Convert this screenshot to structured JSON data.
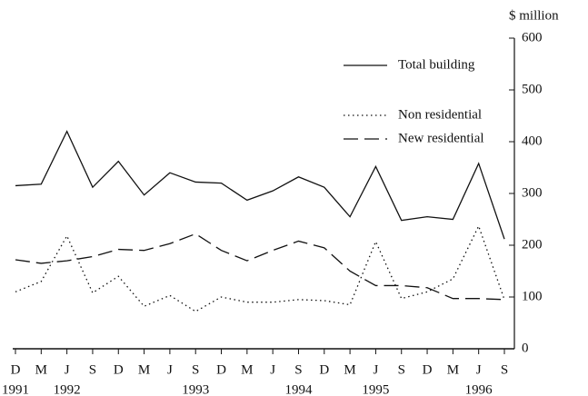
{
  "chart_data": {
    "type": "line",
    "y_axis_label": "$ million",
    "categories": [
      "D",
      "M",
      "J",
      "S",
      "D",
      "M",
      "J",
      "S",
      "D",
      "M",
      "J",
      "S",
      "D",
      "M",
      "J",
      "S",
      "D",
      "M",
      "J",
      "S"
    ],
    "year_labels": [
      "1991",
      null,
      "1992",
      null,
      null,
      null,
      null,
      "1993",
      null,
      null,
      null,
      "1994",
      null,
      null,
      "1995",
      null,
      null,
      null,
      "1996",
      null
    ],
    "ylim": [
      0,
      600
    ],
    "yticks": [
      0,
      100,
      200,
      300,
      400,
      500,
      600
    ],
    "legend": "upper right",
    "series": [
      {
        "name": "Total building",
        "color": "#111111",
        "dash": "solid",
        "values": [
          315,
          318,
          420,
          312,
          362,
          297,
          340,
          322,
          320,
          287,
          305,
          332,
          312,
          255,
          352,
          248,
          255,
          250,
          358,
          212
        ]
      },
      {
        "name": "Non residential",
        "color": "#111111",
        "dash": "dotted",
        "values": [
          110,
          130,
          218,
          108,
          140,
          82,
          103,
          72,
          100,
          90,
          90,
          95,
          93,
          85,
          207,
          97,
          110,
          135,
          237,
          95
        ]
      },
      {
        "name": "New residential",
        "color": "#111111",
        "dash": "dashed",
        "values": [
          172,
          165,
          170,
          178,
          192,
          190,
          203,
          222,
          190,
          170,
          190,
          208,
          195,
          150,
          122,
          122,
          118,
          97,
          97,
          95
        ]
      }
    ]
  }
}
